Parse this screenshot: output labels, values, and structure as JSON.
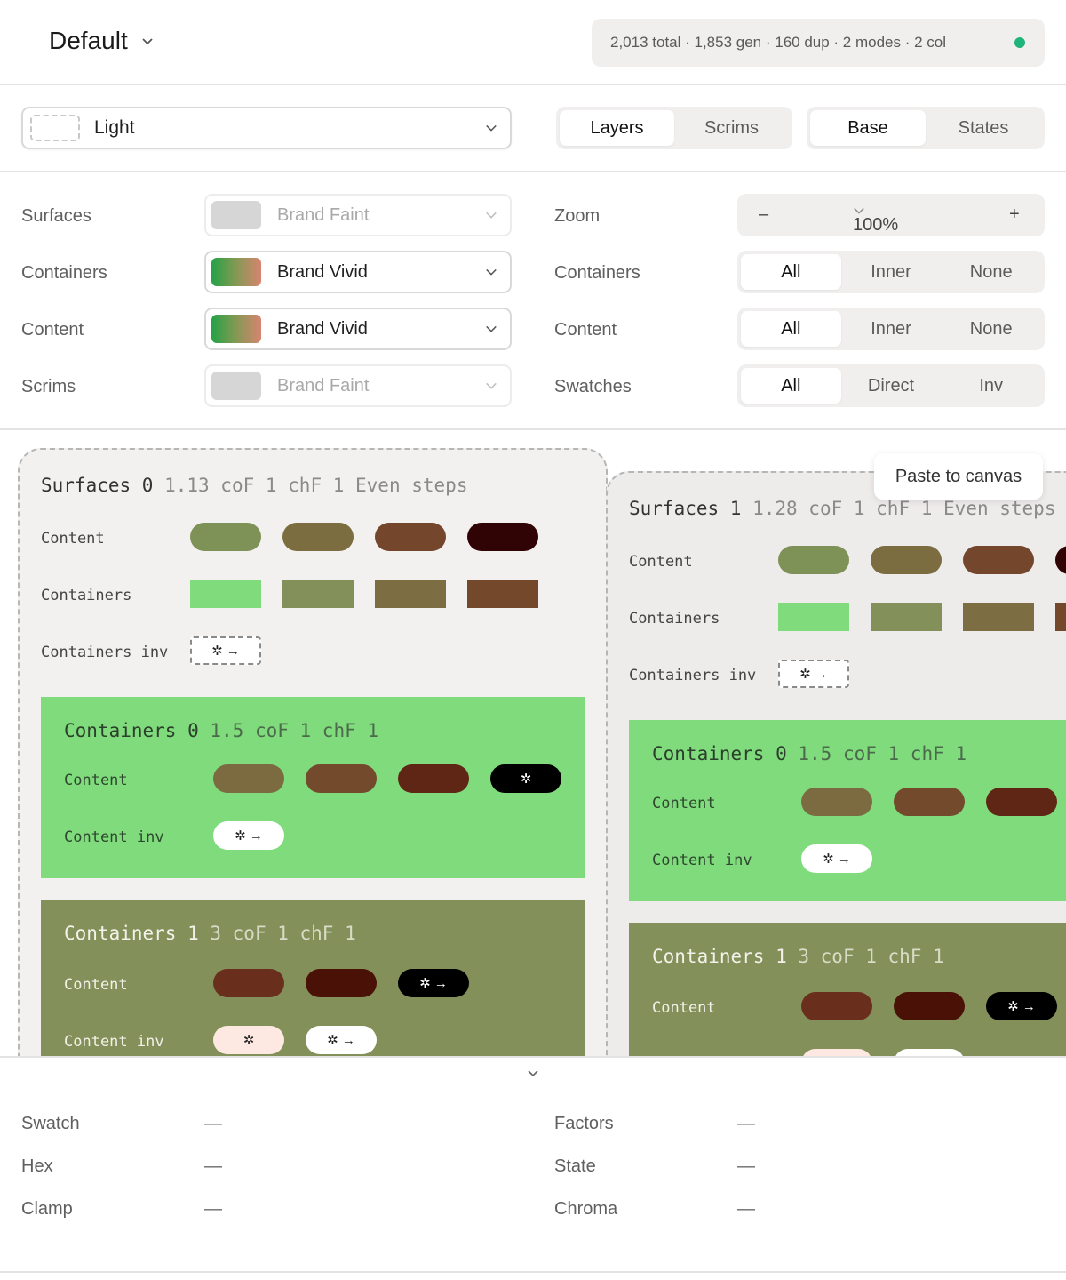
{
  "header": {
    "title": "Default",
    "stats": "2,013 total · 1,853 gen · 160 dup · 2 modes · 2 col",
    "status_color": "#1fb47a"
  },
  "toolbar": {
    "mode": "Light",
    "view_tabs": [
      "Layers",
      "Scrims"
    ],
    "view_active": "Layers",
    "state_tabs": [
      "Base",
      "States"
    ],
    "state_active": "Base"
  },
  "controls": {
    "left": [
      {
        "label": "Surfaces",
        "value": "Brand Faint"
      },
      {
        "label": "Containers",
        "value": "Brand Vivid"
      },
      {
        "label": "Content",
        "value": "Brand Vivid"
      },
      {
        "label": "Scrims",
        "value": "Brand Faint"
      }
    ],
    "zoom_label": "Zoom",
    "zoom_minus": "–",
    "zoom_value": "100%",
    "zoom_plus": "+",
    "right": [
      {
        "label": "Containers",
        "options": [
          "All",
          "Inner",
          "None"
        ],
        "active": "All"
      },
      {
        "label": "Content",
        "options": [
          "All",
          "Inner",
          "None"
        ],
        "active": "All"
      },
      {
        "label": "Swatches",
        "options": [
          "All",
          "Direct",
          "Inv"
        ],
        "active": "All"
      }
    ]
  },
  "canvas": {
    "tooltip": "Paste to canvas",
    "icon_glyph": "✲",
    "icon_arrow": "✲ →",
    "boards": [
      {
        "title": "Surfaces 0",
        "meta": "1.13 coF 1 chF 1 Even steps",
        "rows": {
          "content": "Content",
          "containers": "Containers",
          "containers_inv": "Containers inv"
        },
        "content_colors": [
          "#7e9257",
          "#7c6d41",
          "#74472c",
          "#300404"
        ],
        "container_colors": [
          "#7fdb7c",
          "#839059",
          "#7d6d42",
          "#74482a"
        ],
        "containers": [
          {
            "title": "Containers 0",
            "meta": "1.5 coF 1 chF 1",
            "content": "Content",
            "content_inv": "Content inv",
            "content_colors": [
              "#7c6b41",
              "#744a2d",
              "#5f2616",
              "#000000"
            ]
          },
          {
            "title": "Containers 1",
            "meta": "3 coF 1 chF 1",
            "content": "Content",
            "content_inv": "Content inv",
            "content_colors": [
              "#6a2f1c",
              "#4a1206",
              "#000000"
            ],
            "inv_colors": [
              "#fde9e2",
              "#ffffff"
            ]
          }
        ]
      },
      {
        "title": "Surfaces 1",
        "meta": "1.28 coF 1 chF 1 Even steps"
      }
    ]
  },
  "details": {
    "left": [
      {
        "label": "Swatch",
        "value": "—"
      },
      {
        "label": "Hex",
        "value": "—"
      },
      {
        "label": "Clamp",
        "value": "—"
      }
    ],
    "right": [
      {
        "label": "Factors",
        "value": "—"
      },
      {
        "label": "State",
        "value": "—"
      },
      {
        "label": "Chroma",
        "value": "—"
      }
    ]
  }
}
